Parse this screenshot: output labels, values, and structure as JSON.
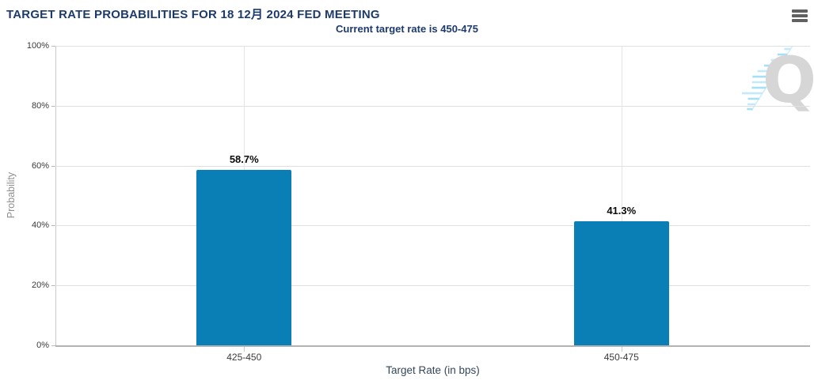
{
  "header": {
    "title": "TARGET RATE PROBABILITIES FOR 18 12月 2024 FED MEETING",
    "subtitle": "Current target rate is 450-475",
    "menu_icon": "hamburger-icon"
  },
  "chart_data": {
    "type": "bar",
    "title": "TARGET RATE PROBABILITIES FOR 18 12月 2024 FED MEETING",
    "subtitle": "Current target rate is 450-475",
    "categories": [
      "425-450",
      "450-475"
    ],
    "values": [
      58.7,
      41.3
    ],
    "value_labels": [
      "58.7%",
      "41.3%"
    ],
    "xlabel": "Target Rate (in bps)",
    "ylabel": "Probability",
    "ylim": [
      0,
      100
    ],
    "yticks": [
      0,
      20,
      40,
      60,
      80,
      100
    ],
    "ytick_labels": [
      "0%",
      "20%",
      "40%",
      "60%",
      "80%",
      "100%"
    ],
    "grid": true,
    "legend": "none",
    "bar_color": "#0a7fb5"
  },
  "watermark": {
    "letter": "Q"
  },
  "colors": {
    "title": "#1d3a6d",
    "subtitle": "#1d3a6d",
    "axis_title": "#33475c",
    "tick_label": "#3a3a3a",
    "bar": "#0a7fb5",
    "gridline": "#e0e0e0",
    "axis_line": "#b3b3b3",
    "menu_icon": "#616161",
    "watermark_gray": "#d6d6d6",
    "watermark_blue": "#a6dff6"
  }
}
